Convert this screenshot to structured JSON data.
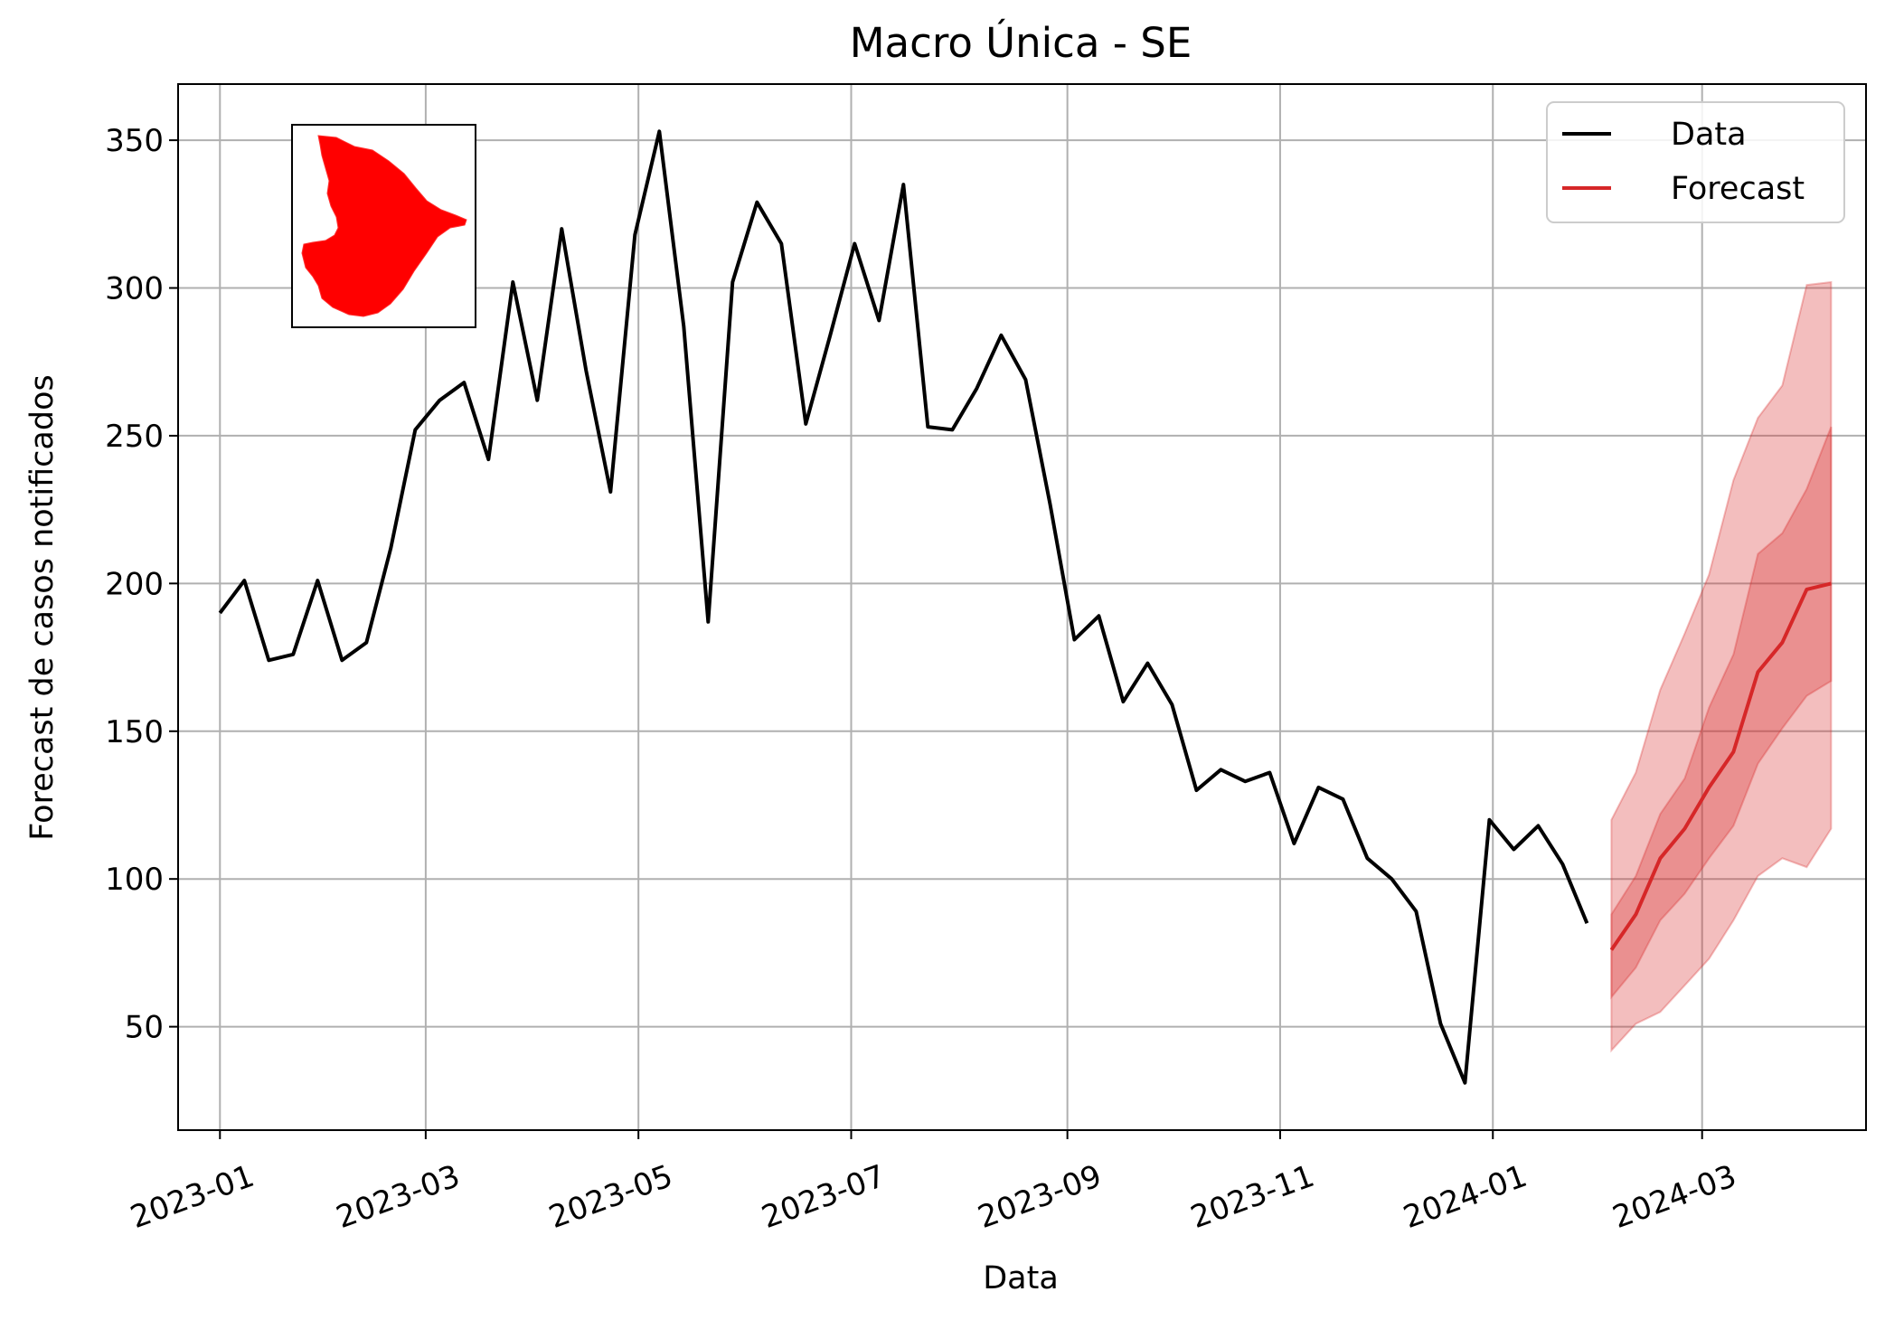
{
  "chart_data": {
    "type": "line",
    "title": "Macro Única - SE",
    "xlabel": "Data",
    "ylabel": "Forecast de casos notificados",
    "ylim": [
      15,
      369
    ],
    "xlim": [
      "2022-12-20",
      "2024-04-17"
    ],
    "yticks": [
      50,
      100,
      150,
      200,
      250,
      300,
      350
    ],
    "xticks": [
      "2023-01",
      "2023-03",
      "2023-05",
      "2023-07",
      "2023-09",
      "2023-11",
      "2024-01",
      "2024-03"
    ],
    "grid": true,
    "legend_position": "top-right",
    "legend": [
      "Data",
      "Forecast"
    ],
    "colors": {
      "data": "#000000",
      "forecast": "#d62728",
      "band": "#d62728"
    },
    "inset": {
      "type": "map",
      "region": "SE",
      "fill": "#ff0000"
    },
    "series": [
      {
        "name": "Data",
        "x": [
          "2023-01-01",
          "2023-01-08",
          "2023-01-15",
          "2023-01-22",
          "2023-01-29",
          "2023-02-05",
          "2023-02-12",
          "2023-02-19",
          "2023-02-26",
          "2023-03-05",
          "2023-03-12",
          "2023-03-19",
          "2023-03-26",
          "2023-04-02",
          "2023-04-09",
          "2023-04-16",
          "2023-04-23",
          "2023-04-30",
          "2023-05-07",
          "2023-05-14",
          "2023-05-21",
          "2023-05-28",
          "2023-06-04",
          "2023-06-11",
          "2023-06-18",
          "2023-06-25",
          "2023-07-02",
          "2023-07-09",
          "2023-07-16",
          "2023-07-23",
          "2023-07-30",
          "2023-08-06",
          "2023-08-13",
          "2023-08-20",
          "2023-08-27",
          "2023-09-03",
          "2023-09-10",
          "2023-09-17",
          "2023-09-24",
          "2023-10-01",
          "2023-10-08",
          "2023-10-15",
          "2023-10-22",
          "2023-10-29",
          "2023-11-05",
          "2023-11-12",
          "2023-11-19",
          "2023-11-26",
          "2023-12-03",
          "2023-12-10",
          "2023-12-17",
          "2023-12-24",
          "2023-12-31",
          "2024-01-07",
          "2024-01-14",
          "2024-01-21",
          "2024-01-28"
        ],
        "values": [
          190,
          201,
          174,
          176,
          201,
          174,
          180,
          212,
          252,
          262,
          268,
          242,
          302,
          262,
          320,
          272,
          231,
          318,
          353,
          287,
          187,
          302,
          329,
          315,
          254,
          284,
          315,
          289,
          335,
          253,
          252,
          266,
          284,
          269,
          227,
          181,
          189,
          160,
          173,
          159,
          130,
          137,
          133,
          136,
          112,
          131,
          127,
          107,
          100,
          89,
          51,
          31,
          120,
          110,
          118,
          105,
          85
        ]
      },
      {
        "name": "Forecast",
        "x": [
          "2024-02-04",
          "2024-02-11",
          "2024-02-18",
          "2024-02-25",
          "2024-03-03",
          "2024-03-10",
          "2024-03-17",
          "2024-03-24",
          "2024-03-31",
          "2024-04-07"
        ],
        "values": [
          76,
          88,
          107,
          117,
          131,
          143,
          170,
          180,
          198,
          200
        ],
        "inner_lower": [
          60,
          70,
          86,
          95,
          107,
          118,
          139,
          151,
          162,
          167
        ],
        "inner_upper": [
          88,
          101,
          122,
          134,
          158,
          176,
          210,
          217,
          232,
          253
        ],
        "outer_lower": [
          42,
          51,
          55,
          64,
          73,
          86,
          101,
          107,
          104,
          117
        ],
        "outer_upper": [
          120,
          136,
          164,
          183,
          203,
          235,
          256,
          267,
          301,
          302
        ]
      }
    ]
  }
}
